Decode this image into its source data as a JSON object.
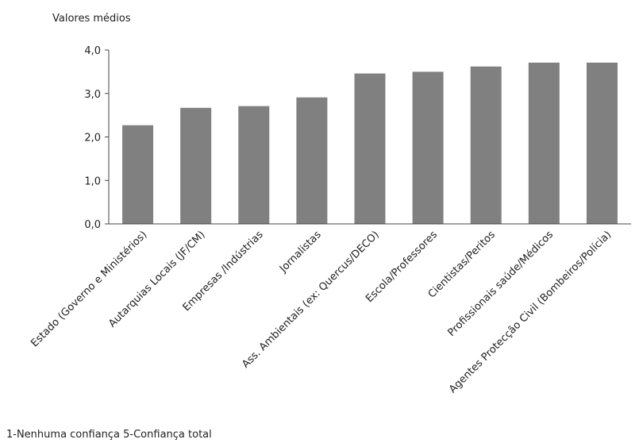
{
  "chart_data": {
    "type": "bar",
    "ylabel": "Valores médios",
    "categories": [
      "Estado (Governo e Ministérios)",
      "Autarquias Locais (JF/CM)",
      "Empresas /Indústrias",
      "Jornalistas",
      "Ass. Ambientais (ex: Quercus/DECO)",
      "Escola/Professores",
      "Cientistas/Peritos",
      "Profissionais saúde/Médicos",
      "Agentes Protecção Civil (Bombeiros/Polícia)"
    ],
    "values": [
      2.27,
      2.67,
      2.71,
      2.91,
      3.46,
      3.5,
      3.62,
      3.71,
      3.71
    ],
    "ylim": [
      0,
      4
    ],
    "yticks": [
      "0,0",
      "1,0",
      "2,0",
      "3,0",
      "4,0"
    ],
    "grid": false,
    "bar_color": "#808080",
    "axis_color": "#444444"
  },
  "note": "1-Nenhuma confiança   5-Confiança total"
}
